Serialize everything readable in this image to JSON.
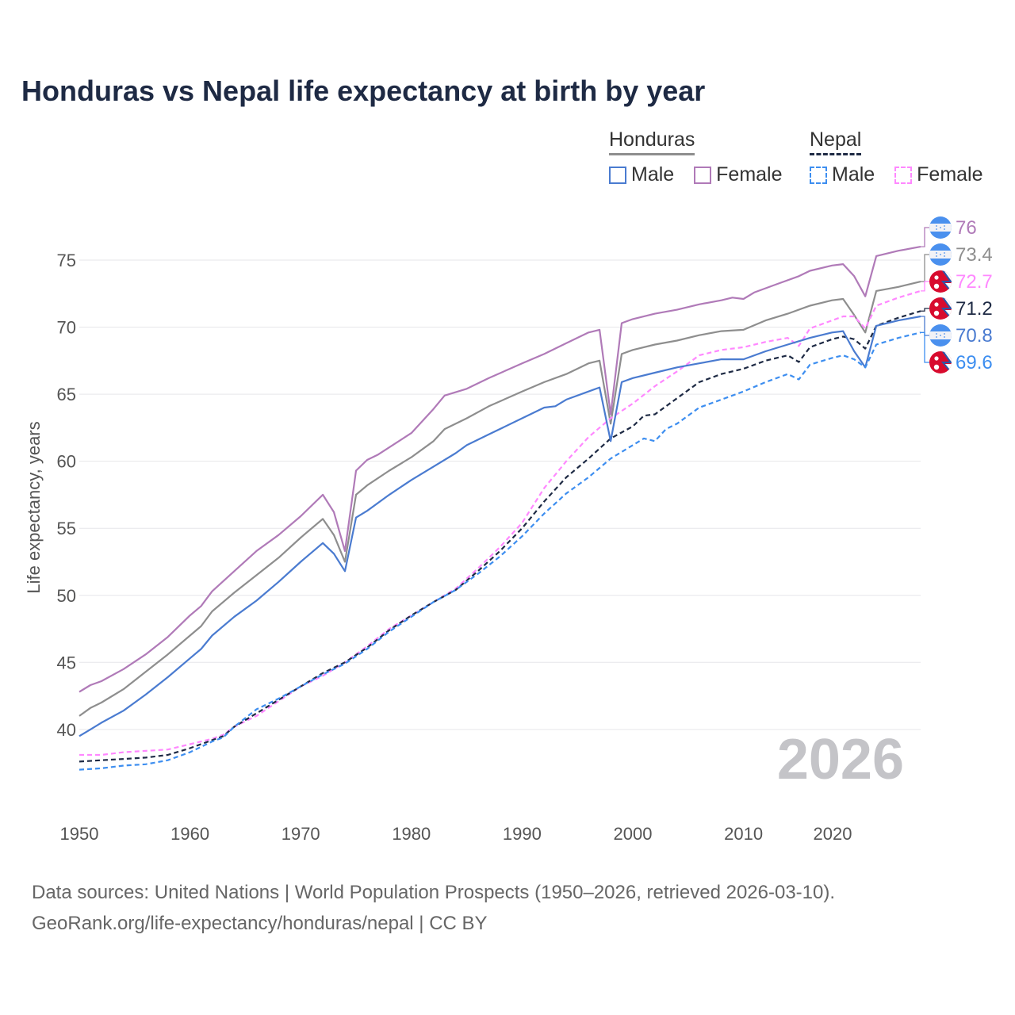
{
  "chart_data": {
    "type": "line",
    "title": "Honduras vs Nepal life expectancy at birth by year",
    "xlabel": "",
    "ylabel": "Life expectancy, years",
    "xlim": [
      1950,
      2026
    ],
    "ylim": [
      35.5,
      78
    ],
    "x_ticks": [
      1950,
      1960,
      1970,
      1980,
      1990,
      2000,
      2010,
      2020
    ],
    "y_ticks": [
      40,
      45,
      50,
      55,
      60,
      65,
      70,
      75
    ],
    "grid": true,
    "watermark_year": "2026",
    "legend": {
      "position": "top-right",
      "groups": [
        {
          "title": "Honduras",
          "items": [
            "Male",
            "Female"
          ]
        },
        {
          "title": "Nepal",
          "items": [
            "Male",
            "Female"
          ]
        }
      ]
    },
    "series": [
      {
        "name": "Honduras Female",
        "country": "honduras",
        "color": "#b07ab8",
        "dashed": false,
        "end_label": "76",
        "points": [
          [
            1950,
            42.8
          ],
          [
            1951,
            43.3
          ],
          [
            1952,
            43.6
          ],
          [
            1954,
            44.5
          ],
          [
            1956,
            45.6
          ],
          [
            1958,
            46.9
          ],
          [
            1960,
            48.5
          ],
          [
            1961,
            49.2
          ],
          [
            1962,
            50.3
          ],
          [
            1964,
            51.8
          ],
          [
            1966,
            53.3
          ],
          [
            1968,
            54.5
          ],
          [
            1970,
            55.9
          ],
          [
            1972,
            57.5
          ],
          [
            1973,
            56.2
          ],
          [
            1974,
            53.3
          ],
          [
            1975,
            59.3
          ],
          [
            1976,
            60.1
          ],
          [
            1977,
            60.5
          ],
          [
            1980,
            62.1
          ],
          [
            1982,
            63.9
          ],
          [
            1983,
            64.9
          ],
          [
            1985,
            65.4
          ],
          [
            1987,
            66.2
          ],
          [
            1990,
            67.3
          ],
          [
            1992,
            68.0
          ],
          [
            1994,
            68.8
          ],
          [
            1996,
            69.6
          ],
          [
            1997,
            69.8
          ],
          [
            1998,
            63.5
          ],
          [
            1999,
            70.3
          ],
          [
            2000,
            70.6
          ],
          [
            2002,
            71.0
          ],
          [
            2004,
            71.3
          ],
          [
            2006,
            71.7
          ],
          [
            2008,
            72.0
          ],
          [
            2009,
            72.2
          ],
          [
            2010,
            72.1
          ],
          [
            2011,
            72.6
          ],
          [
            2013,
            73.2
          ],
          [
            2015,
            73.8
          ],
          [
            2016,
            74.2
          ],
          [
            2018,
            74.6
          ],
          [
            2019,
            74.7
          ],
          [
            2020,
            73.8
          ],
          [
            2021,
            72.3
          ],
          [
            2022,
            75.3
          ],
          [
            2024,
            75.7
          ],
          [
            2026,
            76.0
          ]
        ]
      },
      {
        "name": "Honduras",
        "country": "honduras",
        "color": "#8e8e8e",
        "dashed": false,
        "end_label": "73.4",
        "points": [
          [
            1950,
            41.0
          ],
          [
            1951,
            41.6
          ],
          [
            1952,
            42.0
          ],
          [
            1954,
            43.0
          ],
          [
            1956,
            44.3
          ],
          [
            1958,
            45.6
          ],
          [
            1960,
            47.0
          ],
          [
            1961,
            47.7
          ],
          [
            1962,
            48.8
          ],
          [
            1964,
            50.2
          ],
          [
            1966,
            51.5
          ],
          [
            1968,
            52.8
          ],
          [
            1970,
            54.3
          ],
          [
            1972,
            55.7
          ],
          [
            1973,
            54.5
          ],
          [
            1974,
            52.5
          ],
          [
            1975,
            57.5
          ],
          [
            1976,
            58.2
          ],
          [
            1978,
            59.3
          ],
          [
            1980,
            60.3
          ],
          [
            1982,
            61.5
          ],
          [
            1983,
            62.4
          ],
          [
            1985,
            63.2
          ],
          [
            1987,
            64.1
          ],
          [
            1990,
            65.2
          ],
          [
            1992,
            65.9
          ],
          [
            1994,
            66.5
          ],
          [
            1996,
            67.3
          ],
          [
            1997,
            67.5
          ],
          [
            1998,
            62.8
          ],
          [
            1999,
            68.0
          ],
          [
            2000,
            68.3
          ],
          [
            2002,
            68.7
          ],
          [
            2004,
            69.0
          ],
          [
            2006,
            69.4
          ],
          [
            2008,
            69.7
          ],
          [
            2010,
            69.8
          ],
          [
            2012,
            70.5
          ],
          [
            2014,
            71.0
          ],
          [
            2016,
            71.6
          ],
          [
            2018,
            72.0
          ],
          [
            2019,
            72.1
          ],
          [
            2020,
            70.9
          ],
          [
            2021,
            69.6
          ],
          [
            2022,
            72.7
          ],
          [
            2024,
            73.0
          ],
          [
            2026,
            73.4
          ]
        ]
      },
      {
        "name": "Nepal Female",
        "country": "nepal",
        "color": "#ff88ff",
        "dashed": true,
        "end_label": "72.7",
        "points": [
          [
            1950,
            38.1
          ],
          [
            1952,
            38.1
          ],
          [
            1954,
            38.3
          ],
          [
            1956,
            38.4
          ],
          [
            1958,
            38.5
          ],
          [
            1960,
            38.9
          ],
          [
            1962,
            39.3
          ],
          [
            1963,
            39.6
          ],
          [
            1964,
            40.2
          ],
          [
            1966,
            41.0
          ],
          [
            1968,
            42.1
          ],
          [
            1970,
            43.2
          ],
          [
            1972,
            44.0
          ],
          [
            1974,
            45.0
          ],
          [
            1976,
            46.2
          ],
          [
            1978,
            47.5
          ],
          [
            1980,
            48.5
          ],
          [
            1982,
            49.5
          ],
          [
            1984,
            50.5
          ],
          [
            1986,
            52.0
          ],
          [
            1988,
            53.6
          ],
          [
            1990,
            55.4
          ],
          [
            1992,
            58.0
          ],
          [
            1994,
            60.0
          ],
          [
            1996,
            61.8
          ],
          [
            1998,
            63.2
          ],
          [
            2000,
            64.3
          ],
          [
            2002,
            65.6
          ],
          [
            2004,
            66.7
          ],
          [
            2006,
            67.9
          ],
          [
            2008,
            68.3
          ],
          [
            2010,
            68.5
          ],
          [
            2012,
            68.9
          ],
          [
            2014,
            69.2
          ],
          [
            2015,
            68.6
          ],
          [
            2016,
            69.9
          ],
          [
            2018,
            70.5
          ],
          [
            2019,
            70.8
          ],
          [
            2020,
            70.8
          ],
          [
            2021,
            69.9
          ],
          [
            2022,
            71.6
          ],
          [
            2024,
            72.2
          ],
          [
            2026,
            72.7
          ]
        ]
      },
      {
        "name": "Nepal",
        "country": "nepal",
        "color": "#1e2a44",
        "dashed": true,
        "end_label": "71.2",
        "points": [
          [
            1950,
            37.6
          ],
          [
            1952,
            37.7
          ],
          [
            1954,
            37.8
          ],
          [
            1956,
            37.9
          ],
          [
            1958,
            38.1
          ],
          [
            1960,
            38.6
          ],
          [
            1962,
            39.2
          ],
          [
            1963,
            39.5
          ],
          [
            1964,
            40.2
          ],
          [
            1966,
            41.2
          ],
          [
            1968,
            42.2
          ],
          [
            1970,
            43.2
          ],
          [
            1972,
            44.2
          ],
          [
            1974,
            45.0
          ],
          [
            1976,
            46.1
          ],
          [
            1978,
            47.4
          ],
          [
            1980,
            48.5
          ],
          [
            1982,
            49.5
          ],
          [
            1984,
            50.4
          ],
          [
            1986,
            51.8
          ],
          [
            1988,
            53.3
          ],
          [
            1990,
            55.0
          ],
          [
            1992,
            57.0
          ],
          [
            1994,
            58.8
          ],
          [
            1996,
            60.2
          ],
          [
            1998,
            61.7
          ],
          [
            2000,
            62.6
          ],
          [
            2001,
            63.4
          ],
          [
            2002,
            63.5
          ],
          [
            2004,
            64.7
          ],
          [
            2006,
            65.9
          ],
          [
            2008,
            66.5
          ],
          [
            2010,
            66.9
          ],
          [
            2012,
            67.5
          ],
          [
            2014,
            67.9
          ],
          [
            2015,
            67.4
          ],
          [
            2016,
            68.5
          ],
          [
            2018,
            69.1
          ],
          [
            2019,
            69.3
          ],
          [
            2020,
            69.1
          ],
          [
            2021,
            68.4
          ],
          [
            2022,
            70.1
          ],
          [
            2024,
            70.7
          ],
          [
            2026,
            71.2
          ]
        ]
      },
      {
        "name": "Honduras Male",
        "country": "honduras",
        "color": "#4a7bd0",
        "dashed": false,
        "end_label": "70.8",
        "points": [
          [
            1950,
            39.5
          ],
          [
            1951,
            40.0
          ],
          [
            1952,
            40.5
          ],
          [
            1954,
            41.4
          ],
          [
            1956,
            42.6
          ],
          [
            1958,
            43.9
          ],
          [
            1960,
            45.3
          ],
          [
            1961,
            46.0
          ],
          [
            1962,
            47.0
          ],
          [
            1964,
            48.4
          ],
          [
            1966,
            49.6
          ],
          [
            1968,
            51.0
          ],
          [
            1970,
            52.5
          ],
          [
            1972,
            53.9
          ],
          [
            1973,
            53.1
          ],
          [
            1974,
            51.8
          ],
          [
            1975,
            55.8
          ],
          [
            1976,
            56.3
          ],
          [
            1978,
            57.5
          ],
          [
            1980,
            58.6
          ],
          [
            1982,
            59.6
          ],
          [
            1984,
            60.6
          ],
          [
            1985,
            61.2
          ],
          [
            1987,
            62.0
          ],
          [
            1990,
            63.2
          ],
          [
            1992,
            64.0
          ],
          [
            1993,
            64.1
          ],
          [
            1994,
            64.6
          ],
          [
            1996,
            65.2
          ],
          [
            1997,
            65.5
          ],
          [
            1998,
            61.5
          ],
          [
            1999,
            65.9
          ],
          [
            2000,
            66.2
          ],
          [
            2002,
            66.6
          ],
          [
            2004,
            67.0
          ],
          [
            2006,
            67.3
          ],
          [
            2008,
            67.6
          ],
          [
            2010,
            67.6
          ],
          [
            2012,
            68.2
          ],
          [
            2014,
            68.7
          ],
          [
            2016,
            69.2
          ],
          [
            2018,
            69.6
          ],
          [
            2019,
            69.7
          ],
          [
            2020,
            68.2
          ],
          [
            2021,
            67.0
          ],
          [
            2022,
            70.1
          ],
          [
            2024,
            70.5
          ],
          [
            2026,
            70.8
          ]
        ]
      },
      {
        "name": "Nepal Male",
        "country": "nepal",
        "color": "#3d8ef0",
        "dashed": true,
        "end_label": "69.6",
        "points": [
          [
            1950,
            37.0
          ],
          [
            1952,
            37.1
          ],
          [
            1954,
            37.3
          ],
          [
            1956,
            37.4
          ],
          [
            1958,
            37.7
          ],
          [
            1960,
            38.3
          ],
          [
            1962,
            39.1
          ],
          [
            1963,
            39.4
          ],
          [
            1964,
            40.2
          ],
          [
            1966,
            41.5
          ],
          [
            1968,
            42.3
          ],
          [
            1970,
            43.2
          ],
          [
            1972,
            44.1
          ],
          [
            1974,
            44.9
          ],
          [
            1976,
            46.0
          ],
          [
            1978,
            47.3
          ],
          [
            1980,
            48.4
          ],
          [
            1982,
            49.5
          ],
          [
            1984,
            50.4
          ],
          [
            1986,
            51.6
          ],
          [
            1988,
            52.9
          ],
          [
            1990,
            54.4
          ],
          [
            1992,
            56.1
          ],
          [
            1994,
            57.6
          ],
          [
            1996,
            58.8
          ],
          [
            1998,
            60.2
          ],
          [
            2000,
            61.2
          ],
          [
            2001,
            61.7
          ],
          [
            2002,
            61.5
          ],
          [
            2003,
            62.4
          ],
          [
            2004,
            62.8
          ],
          [
            2006,
            64.0
          ],
          [
            2008,
            64.6
          ],
          [
            2010,
            65.2
          ],
          [
            2012,
            65.9
          ],
          [
            2014,
            66.5
          ],
          [
            2015,
            66.1
          ],
          [
            2016,
            67.2
          ],
          [
            2018,
            67.7
          ],
          [
            2019,
            67.9
          ],
          [
            2020,
            67.6
          ],
          [
            2021,
            67.0
          ],
          [
            2022,
            68.7
          ],
          [
            2024,
            69.2
          ],
          [
            2026,
            69.6
          ]
        ]
      }
    ]
  },
  "legend": {
    "honduras": {
      "title": "Honduras",
      "male": "Male",
      "female": "Female"
    },
    "nepal": {
      "title": "Nepal",
      "male": "Male",
      "female": "Female"
    }
  },
  "footer": {
    "line1": "Data sources: United Nations | World Population Prospects (1950–2026, retrieved 2026-03-10).",
    "line2": "GeoRank.org/life-expectancy/honduras/nepal | CC BY"
  }
}
